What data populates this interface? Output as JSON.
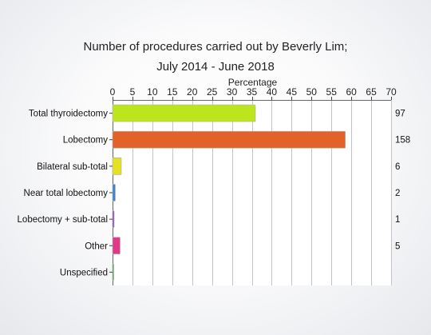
{
  "chart_data": {
    "type": "bar",
    "orientation": "horizontal",
    "title_line1": "Number of procedures carried out by Beverly Lim;",
    "title_line2": "July 2014 - June 2018",
    "xlabel": "Percentage",
    "xlim": [
      0,
      70
    ],
    "xticks": [
      "0",
      "5",
      "10",
      "15",
      "20",
      "25",
      "30",
      "35",
      "40",
      "45",
      "50",
      "55",
      "60",
      "65",
      "70"
    ],
    "grid": true,
    "axis_position": "top",
    "categories": [
      "Total thyroidectomy",
      "Lobectomy",
      "Bilateral sub-total",
      "Near total lobectomy",
      "Lobectomy + sub-total",
      "Other",
      "Unspecified"
    ],
    "values": [
      35.9,
      58.5,
      2.2,
      0.7,
      0.4,
      1.9,
      0.1
    ],
    "counts": [
      "97",
      "158",
      "6",
      "2",
      "1",
      "5",
      ""
    ],
    "colors": [
      "#bde51e",
      "#e3622a",
      "#e3e121",
      "#3c86cf",
      "#8a3fb6",
      "#e03a86",
      "#32a84a"
    ]
  }
}
